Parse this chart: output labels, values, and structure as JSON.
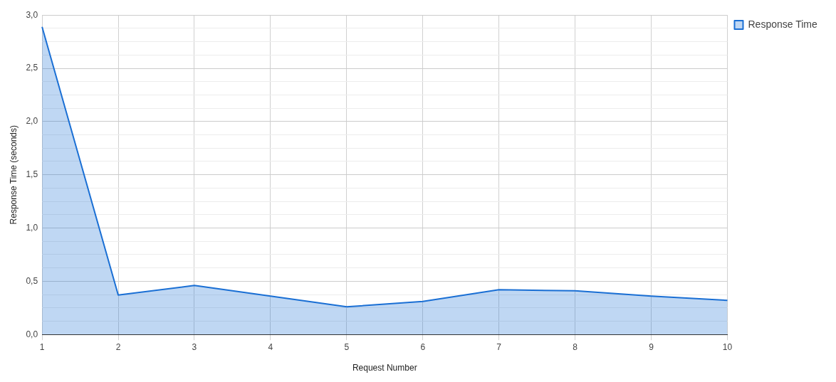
{
  "chart_data": {
    "type": "area",
    "xlabel": "Request Number",
    "ylabel": "Response Time (seconds)",
    "categories": [
      "1",
      "2",
      "3",
      "4",
      "5",
      "6",
      "7",
      "8",
      "9",
      "10"
    ],
    "series": [
      {
        "name": "Response Time",
        "color": "#1a6fd4",
        "values": [
          2.89,
          0.37,
          0.46,
          0.36,
          0.26,
          0.31,
          0.42,
          0.41,
          0.36,
          0.32
        ]
      }
    ],
    "ylim": [
      0,
      3
    ],
    "yticks": [
      {
        "value": 0,
        "label": "0,0"
      },
      {
        "value": 0.125,
        "label": null
      },
      {
        "value": 0.25,
        "label": null
      },
      {
        "value": 0.375,
        "label": null
      },
      {
        "value": 0.5,
        "label": "0,5"
      },
      {
        "value": 0.625,
        "label": null
      },
      {
        "value": 0.75,
        "label": null
      },
      {
        "value": 0.875,
        "label": null
      },
      {
        "value": 1,
        "label": "1,0"
      },
      {
        "value": 1.125,
        "label": null
      },
      {
        "value": 1.25,
        "label": null
      },
      {
        "value": 1.375,
        "label": null
      },
      {
        "value": 1.5,
        "label": "1,5"
      },
      {
        "value": 1.625,
        "label": null
      },
      {
        "value": 1.75,
        "label": null
      },
      {
        "value": 1.875,
        "label": null
      },
      {
        "value": 2,
        "label": "2,0"
      },
      {
        "value": 2.125,
        "label": null
      },
      {
        "value": 2.25,
        "label": null
      },
      {
        "value": 2.375,
        "label": null
      },
      {
        "value": 2.5,
        "label": "2,5"
      },
      {
        "value": 2.625,
        "label": null
      },
      {
        "value": 2.75,
        "label": null
      },
      {
        "value": 2.875,
        "label": null
      },
      {
        "value": 3,
        "label": "3,0"
      }
    ],
    "grid": true,
    "legend": "top right",
    "marker": "none",
    "line_style": "solid"
  }
}
